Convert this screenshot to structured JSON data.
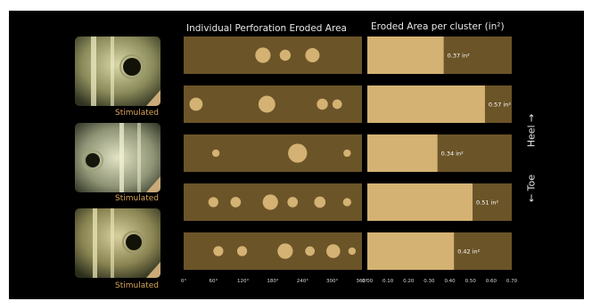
{
  "left_title": "Individual Perforation Eroded Area",
  "right_title": "Eroded Area per cluster (in²)",
  "thumbnail_label": "Stimulated",
  "orientation": {
    "heel": "Heel →",
    "toe": "← Toe"
  },
  "colors": {
    "background": "#000000",
    "panel": "#6b5428",
    "accent": "#d4b273",
    "label": "#d9a65a"
  },
  "chart_data": [
    {
      "type": "scatter",
      "title": "Individual Perforation Eroded Area",
      "x_ticks": [
        "0°",
        "60°",
        "120°",
        "180°",
        "240°",
        "300°",
        "360°"
      ],
      "xlim": [
        0,
        360
      ],
      "note": "bubble size = relative perforation eroded area",
      "rows": [
        {
          "points": [
            {
              "angle": 160,
              "size": 0.55
            },
            {
              "angle": 205,
              "size": 0.35
            },
            {
              "angle": 260,
              "size": 0.5
            }
          ]
        },
        {
          "points": [
            {
              "angle": 25,
              "size": 0.45
            },
            {
              "angle": 168,
              "size": 0.62
            },
            {
              "angle": 280,
              "size": 0.35
            },
            {
              "angle": 310,
              "size": 0.28
            }
          ]
        },
        {
          "points": [
            {
              "angle": 65,
              "size": 0.18
            },
            {
              "angle": 230,
              "size": 0.72
            },
            {
              "angle": 330,
              "size": 0.18
            }
          ]
        },
        {
          "points": [
            {
              "angle": 60,
              "size": 0.3
            },
            {
              "angle": 105,
              "size": 0.32
            },
            {
              "angle": 175,
              "size": 0.55
            },
            {
              "angle": 220,
              "size": 0.32
            },
            {
              "angle": 275,
              "size": 0.36
            },
            {
              "angle": 330,
              "size": 0.22
            }
          ]
        },
        {
          "points": [
            {
              "angle": 70,
              "size": 0.3
            },
            {
              "angle": 118,
              "size": 0.3
            },
            {
              "angle": 205,
              "size": 0.55
            },
            {
              "angle": 255,
              "size": 0.28
            },
            {
              "angle": 302,
              "size": 0.48
            },
            {
              "angle": 340,
              "size": 0.18
            }
          ]
        }
      ]
    },
    {
      "type": "bar",
      "title": "Eroded Area per cluster (in²)",
      "values": [
        0.37,
        0.57,
        0.34,
        0.51,
        0.42
      ],
      "value_labels": [
        "0.37 in²",
        "0.57 in²",
        "0.34 in²",
        "0.51 in²",
        "0.42 in²"
      ],
      "x_ticks": [
        "0.00",
        "0.10",
        "0.20",
        "0.30",
        "0.40",
        "0.50",
        "0.60",
        "0.70"
      ],
      "xlim": [
        0,
        0.7
      ]
    }
  ]
}
